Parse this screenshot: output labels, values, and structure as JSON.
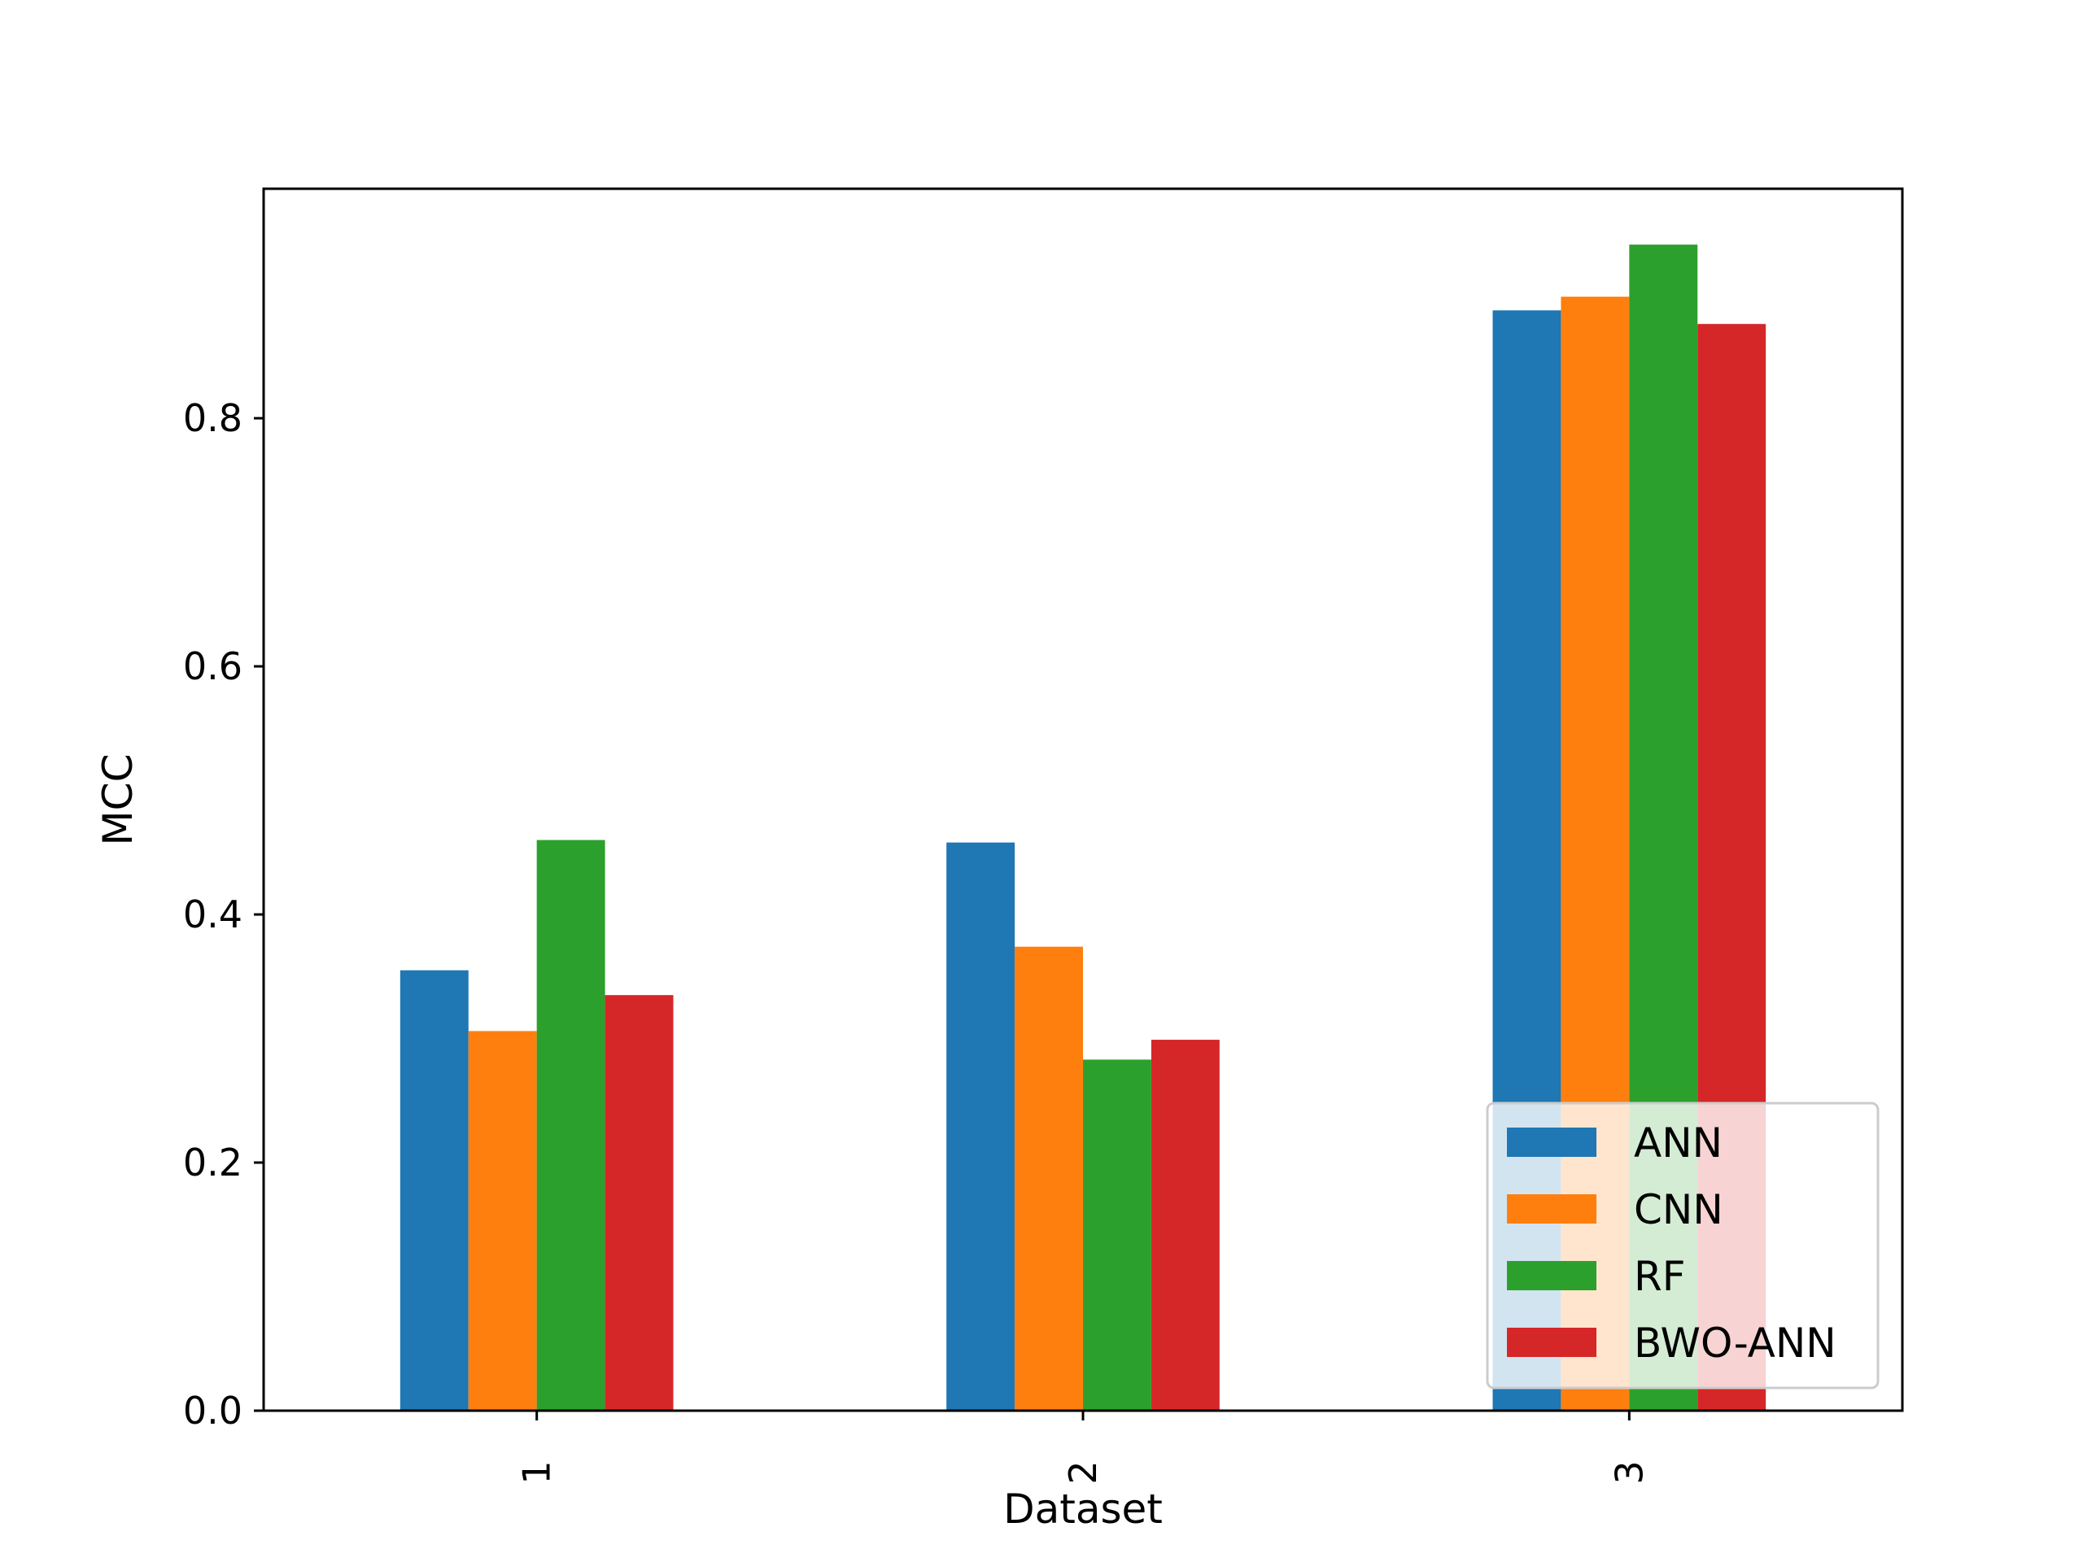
{
  "chart_data": {
    "type": "bar",
    "xlabel": "Dataset",
    "ylabel": "MCC",
    "categories": [
      "1",
      "2",
      "3"
    ],
    "ylim": [
      0,
      0.985
    ],
    "yticks": [
      0.0,
      0.2,
      0.4,
      0.6,
      0.8
    ],
    "ytick_labels": [
      "0.0",
      "0.2",
      "0.4",
      "0.6",
      "0.8"
    ],
    "grid": false,
    "legend_position": "lower-right",
    "series": [
      {
        "name": "ANN",
        "color": "#1f77b4",
        "values": [
          0.355,
          0.458,
          0.887
        ]
      },
      {
        "name": "CNN",
        "color": "#ff7f0e",
        "values": [
          0.306,
          0.374,
          0.898
        ]
      },
      {
        "name": "RF",
        "color": "#2ca02c",
        "values": [
          0.46,
          0.283,
          0.94
        ]
      },
      {
        "name": "BWO-ANN",
        "color": "#d62728",
        "values": [
          0.335,
          0.299,
          0.876
        ]
      }
    ]
  }
}
